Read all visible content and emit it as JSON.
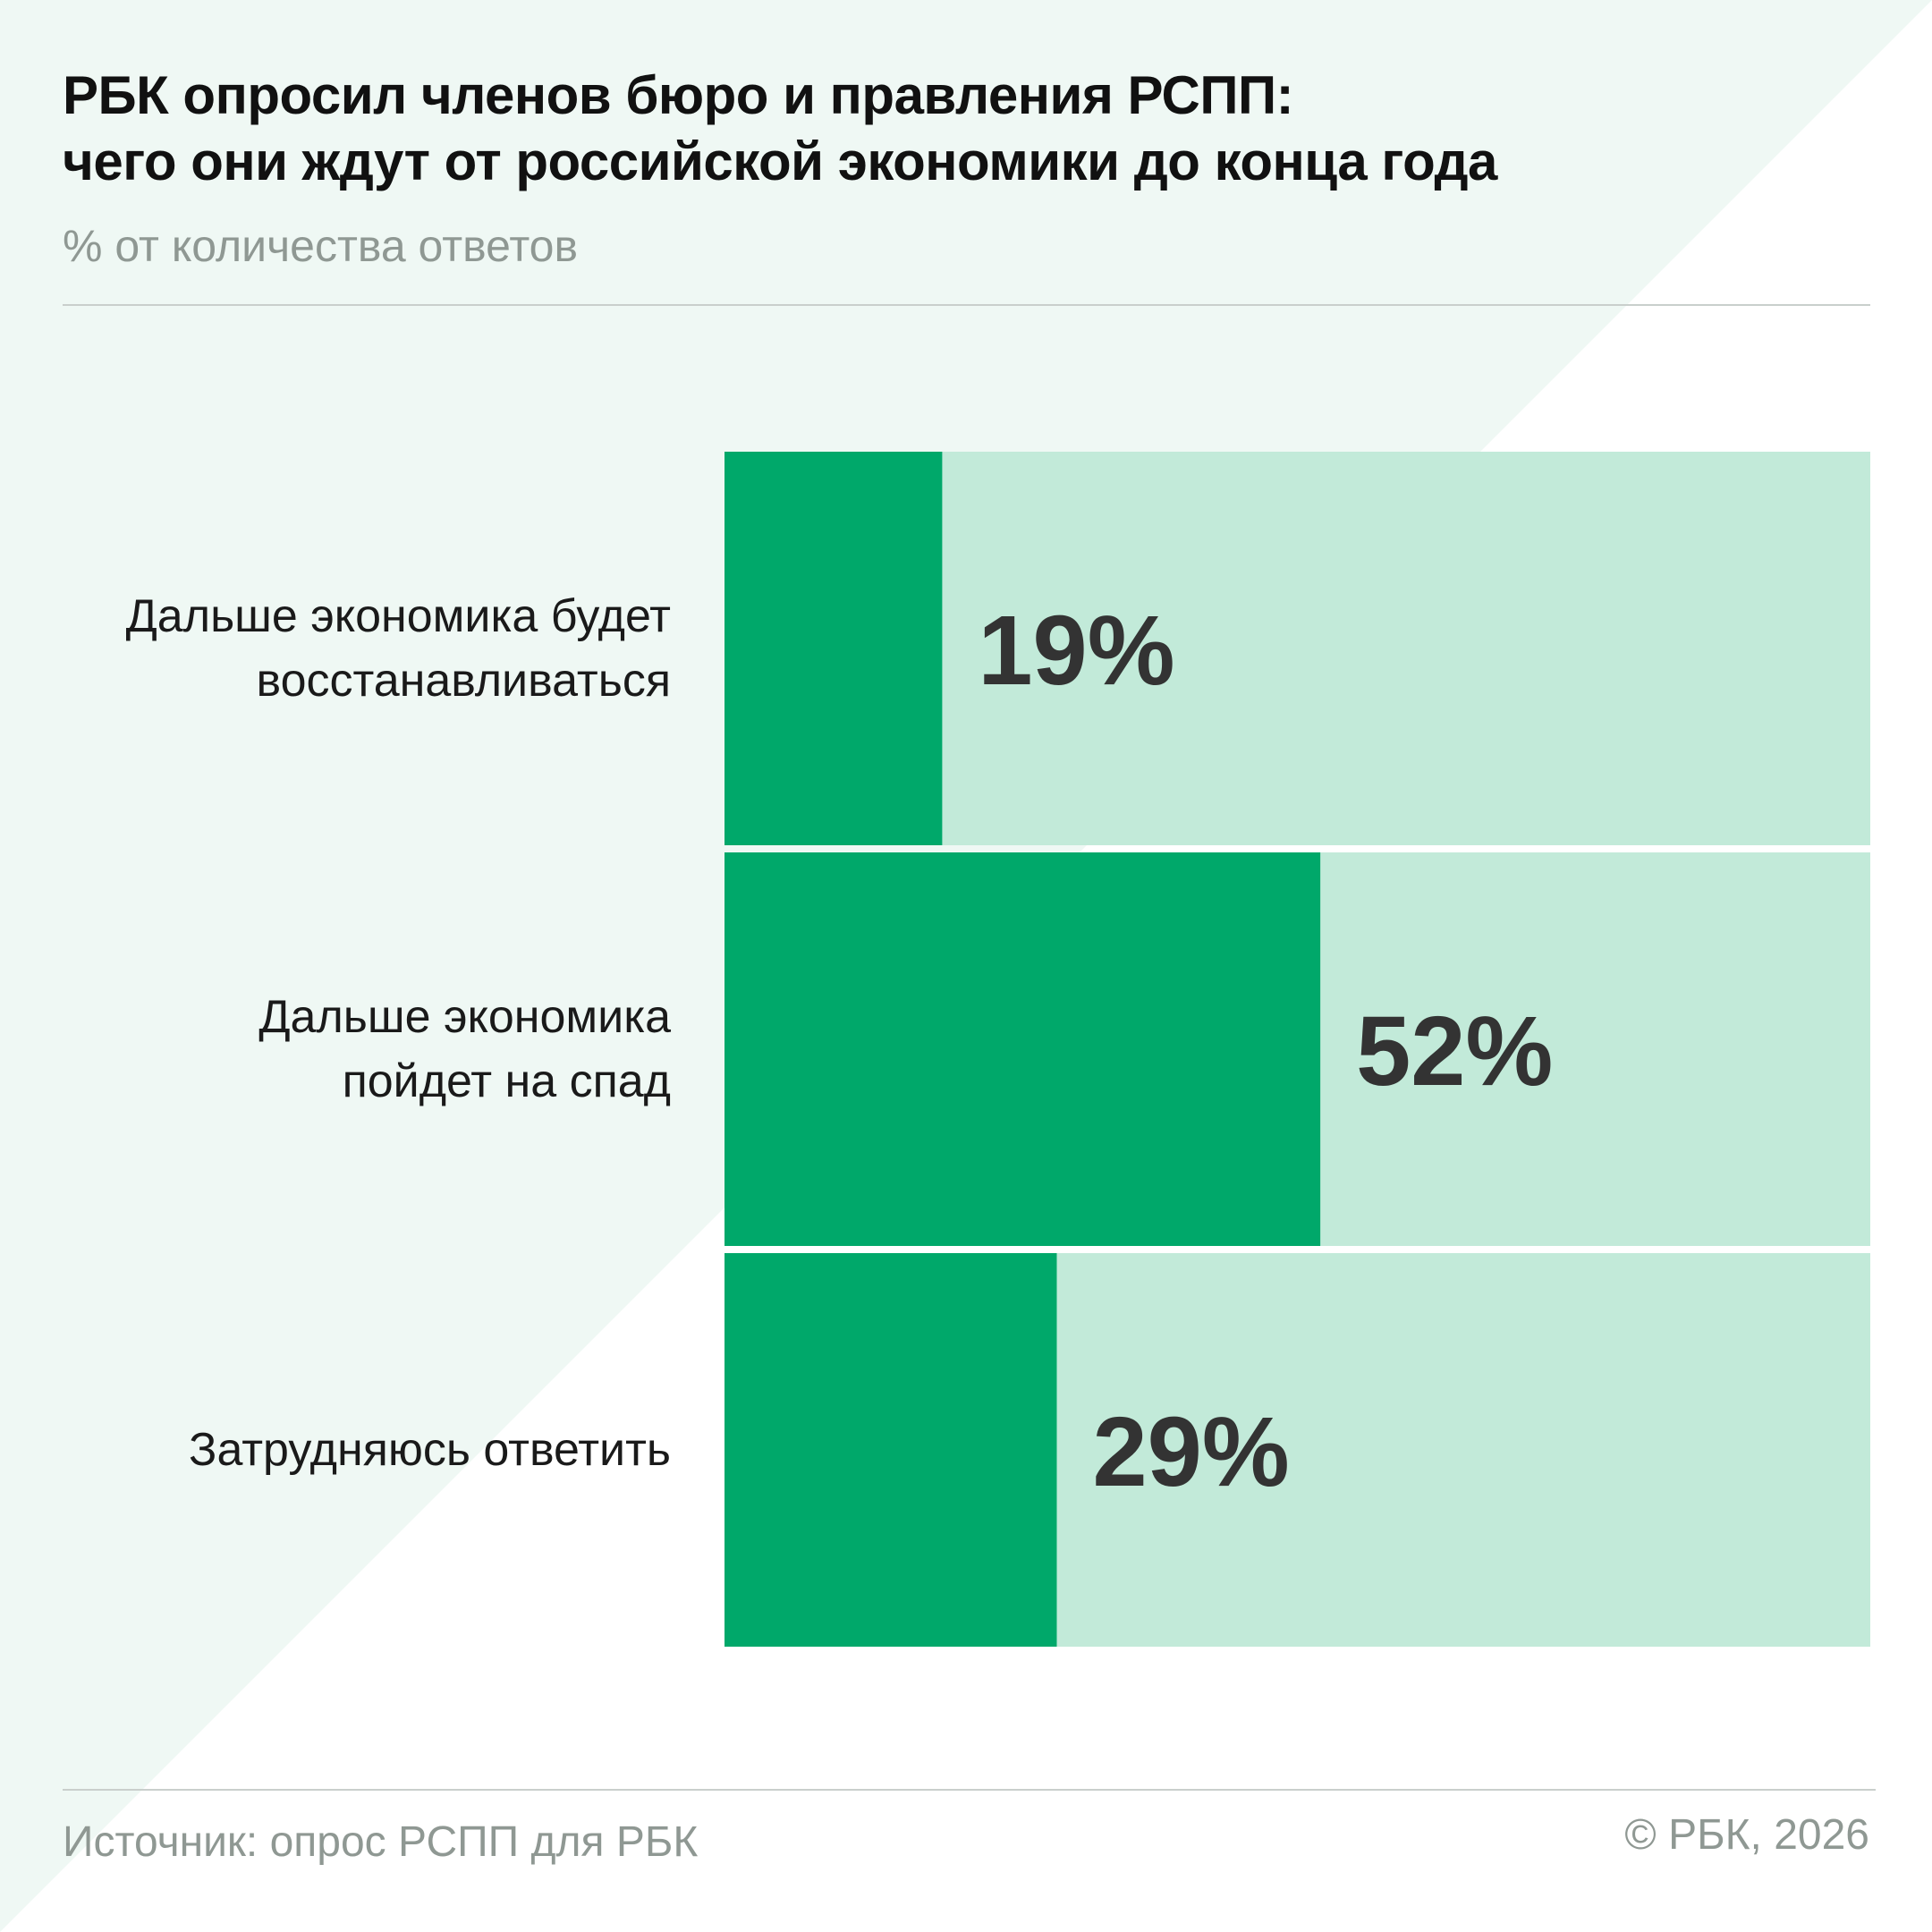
{
  "header": {
    "title_line1": "РБК опросил членов бюро и правления РСПП:",
    "title_line2": "чего они ждут от российской экономики до конца года",
    "subtitle": "% от количества ответов"
  },
  "footer": {
    "source": "Источник: опрос РСПП для РБК",
    "copyright": "© РБК, 2026"
  },
  "colors": {
    "bar_fill": "#00a86a",
    "bar_track": "#c2ead9",
    "background_accent": "#eff8f4",
    "value_text": "#333333"
  },
  "chart_data": {
    "type": "bar",
    "orientation": "horizontal",
    "title": "РБК опросил членов бюро и правления РСПП: чего они ждут от российской экономики до конца года",
    "subtitle": "% от количества ответов",
    "categories": [
      [
        "Дальше экономика будет",
        "восстанавливаться"
      ],
      [
        "Дальше экономика",
        "пойдет на спад"
      ],
      [
        "Затрудняюсь ответить"
      ]
    ],
    "values": [
      19,
      52,
      29
    ],
    "value_labels": [
      "19%",
      "52%",
      "29%"
    ],
    "xlim": [
      0,
      100
    ],
    "grid": false,
    "legend": "none"
  }
}
